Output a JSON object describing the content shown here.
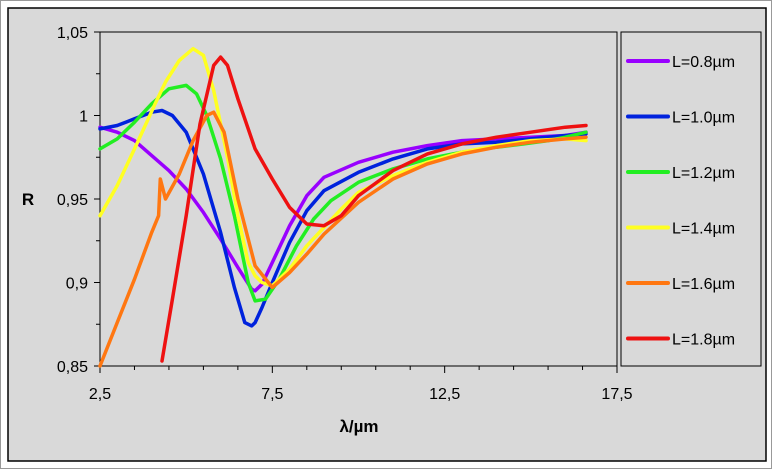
{
  "chart_data": {
    "type": "line",
    "title": "",
    "xlabel": "λ/µm",
    "ylabel": "R",
    "xlim": [
      2.5,
      17.5
    ],
    "ylim": [
      0.85,
      1.05
    ],
    "xticks": [
      2.5,
      7.5,
      12.5,
      17.5
    ],
    "xtick_labels": [
      "2,5",
      "7,5",
      "12,5",
      "17,5"
    ],
    "yticks": [
      0.85,
      0.9,
      0.95,
      1.0,
      1.05
    ],
    "ytick_labels": [
      "0,85",
      "0,9",
      "0,95",
      "1",
      "1,05"
    ],
    "grid": false,
    "legend_position": "right",
    "series": [
      {
        "name": "L=0.8µm",
        "color": "#9900ff",
        "x": [
          2.5,
          3.0,
          3.5,
          4.0,
          4.5,
          5.0,
          5.5,
          6.0,
          6.5,
          6.9,
          7.0,
          7.2,
          7.5,
          8.0,
          8.5,
          9.0,
          10.0,
          11.0,
          12.0,
          13.0,
          14.0,
          15.0,
          16.0,
          16.6
        ],
        "y": [
          0.993,
          0.99,
          0.985,
          0.976,
          0.967,
          0.956,
          0.942,
          0.926,
          0.909,
          0.896,
          0.895,
          0.899,
          0.912,
          0.934,
          0.952,
          0.963,
          0.972,
          0.978,
          0.982,
          0.985,
          0.986,
          0.987,
          0.988,
          0.99
        ]
      },
      {
        "name": "L=1.0µm",
        "color": "#0022dd",
        "x": [
          2.5,
          3.0,
          3.5,
          4.0,
          4.3,
          4.6,
          5.0,
          5.5,
          6.0,
          6.4,
          6.7,
          6.9,
          7.0,
          7.2,
          7.5,
          8.0,
          8.5,
          9.0,
          10.0,
          11.0,
          12.0,
          13.0,
          14.0,
          15.0,
          16.0,
          16.6
        ],
        "y": [
          0.992,
          0.994,
          0.998,
          1.002,
          1.003,
          1.0,
          0.99,
          0.965,
          0.93,
          0.897,
          0.876,
          0.874,
          0.876,
          0.885,
          0.9,
          0.924,
          0.943,
          0.955,
          0.966,
          0.974,
          0.98,
          0.983,
          0.984,
          0.986,
          0.988,
          0.989
        ]
      },
      {
        "name": "L=1.2µm",
        "color": "#22ee22",
        "x": [
          2.5,
          3.0,
          3.5,
          4.0,
          4.5,
          5.0,
          5.3,
          5.6,
          6.0,
          6.4,
          6.8,
          7.0,
          7.3,
          7.7,
          8.2,
          8.7,
          9.2,
          10.0,
          11.0,
          12.0,
          13.0,
          14.0,
          14.8,
          15.5,
          16.0,
          16.6
        ],
        "y": [
          0.98,
          0.986,
          0.996,
          1.007,
          1.016,
          1.018,
          1.013,
          1.0,
          0.974,
          0.94,
          0.9,
          0.889,
          0.89,
          0.902,
          0.922,
          0.938,
          0.949,
          0.96,
          0.968,
          0.974,
          0.978,
          0.981,
          0.983,
          0.985,
          0.987,
          0.99
        ]
      },
      {
        "name": "L=1.4µm",
        "color": "#ffff22",
        "x": [
          2.5,
          3.0,
          3.5,
          3.9,
          4.1,
          4.4,
          4.8,
          5.2,
          5.5,
          5.8,
          6.2,
          6.5,
          6.8,
          7.0,
          7.2,
          7.5,
          8.0,
          8.5,
          9.0,
          9.5,
          10.0,
          11.0,
          12.0,
          13.0,
          14.0,
          15.0,
          16.0,
          16.6
        ],
        "y": [
          0.94,
          0.958,
          0.98,
          0.998,
          1.007,
          1.02,
          1.033,
          1.04,
          1.036,
          1.015,
          0.975,
          0.94,
          0.912,
          0.904,
          0.9,
          0.898,
          0.908,
          0.922,
          0.933,
          0.944,
          0.954,
          0.964,
          0.972,
          0.978,
          0.982,
          0.985,
          0.986,
          0.985
        ]
      },
      {
        "name": "L=1.6µm",
        "color": "#ff7711",
        "x": [
          2.5,
          3.0,
          3.5,
          4.0,
          4.2,
          4.25,
          4.4,
          4.8,
          5.2,
          5.6,
          5.8,
          6.1,
          6.5,
          7.0,
          7.5,
          8.0,
          8.5,
          9.0,
          10.0,
          11.0,
          12.0,
          13.0,
          14.0,
          15.0,
          16.0,
          16.6
        ],
        "y": [
          0.85,
          0.876,
          0.902,
          0.93,
          0.94,
          0.962,
          0.95,
          0.965,
          0.985,
          1.0,
          1.002,
          0.99,
          0.95,
          0.91,
          0.897,
          0.906,
          0.917,
          0.929,
          0.948,
          0.962,
          0.971,
          0.977,
          0.981,
          0.984,
          0.986,
          0.987
        ]
      },
      {
        "name": "L=1.8µm",
        "color": "#ee1111",
        "x": [
          4.3,
          4.6,
          5.0,
          5.4,
          5.8,
          6.0,
          6.2,
          6.5,
          7.0,
          7.5,
          8.0,
          8.5,
          9.0,
          9.5,
          10.0,
          11.0,
          12.0,
          13.0,
          14.0,
          15.0,
          16.0,
          16.6
        ],
        "y": [
          0.853,
          0.89,
          0.94,
          0.995,
          1.03,
          1.035,
          1.03,
          1.01,
          0.98,
          0.962,
          0.945,
          0.935,
          0.934,
          0.94,
          0.952,
          0.967,
          0.977,
          0.983,
          0.987,
          0.99,
          0.993,
          0.994
        ]
      }
    ]
  }
}
